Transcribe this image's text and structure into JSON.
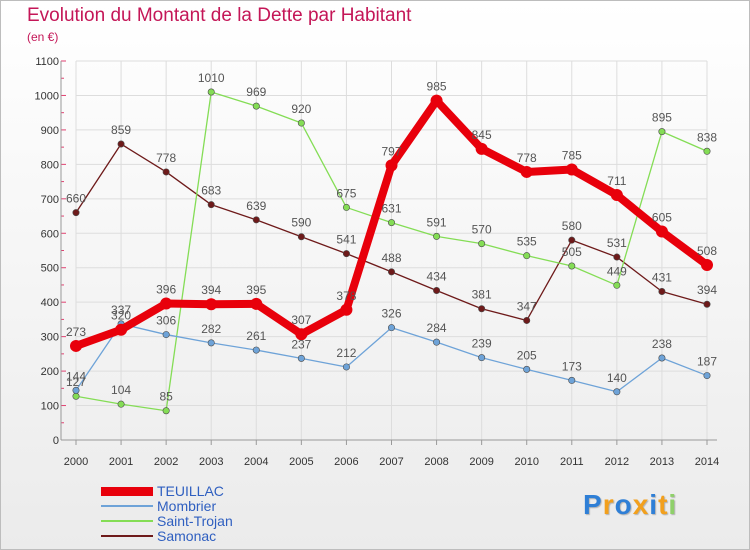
{
  "chart_data": {
    "type": "line",
    "title": "Evolution du Montant de la Dette par Habitant",
    "subtitle": "(en €)",
    "xlabel": "",
    "ylabel": "",
    "categories": [
      "2000",
      "2001",
      "2002",
      "2003",
      "2004",
      "2005",
      "2006",
      "2007",
      "2008",
      "2009",
      "2010",
      "2011",
      "2012",
      "2013",
      "2014"
    ],
    "ylim": [
      0,
      1100
    ],
    "yticks": [
      "0",
      "100",
      "200",
      "300",
      "400",
      "500",
      "600",
      "700",
      "800",
      "900",
      "1000",
      "1100"
    ],
    "grid": true,
    "legend_position": "bottom-left",
    "series": [
      {
        "name": "TEUILLAC",
        "color": "#e8000b",
        "values": [
          273,
          320,
          396,
          394,
          395,
          307,
          378,
          797,
          985,
          845,
          778,
          785,
          711,
          605,
          508
        ]
      },
      {
        "name": "Mombrier",
        "color": "#6ea3d8",
        "values": [
          144,
          337,
          306,
          282,
          261,
          237,
          212,
          326,
          284,
          239,
          205,
          173,
          140,
          238,
          187
        ]
      },
      {
        "name": "Saint-Trojan",
        "color": "#84dd55",
        "values": [
          127,
          104,
          85,
          1010,
          969,
          920,
          675,
          631,
          591,
          570,
          535,
          505,
          449,
          895,
          838
        ]
      },
      {
        "name": "Samonac",
        "color": "#6e1a1a",
        "values": [
          660,
          859,
          778,
          683,
          639,
          590,
          541,
          488,
          434,
          381,
          347,
          580,
          531,
          431,
          394
        ]
      }
    ]
  },
  "brand": {
    "letters": [
      "P",
      "r",
      "o",
      "x",
      "i",
      "t",
      "i"
    ],
    "colors": [
      "#2f7fd6",
      "#f2a01d",
      "#2f7fd6",
      "#f2a01d",
      "#2f7fd6",
      "#f2a01d",
      "#8fd06a"
    ]
  }
}
